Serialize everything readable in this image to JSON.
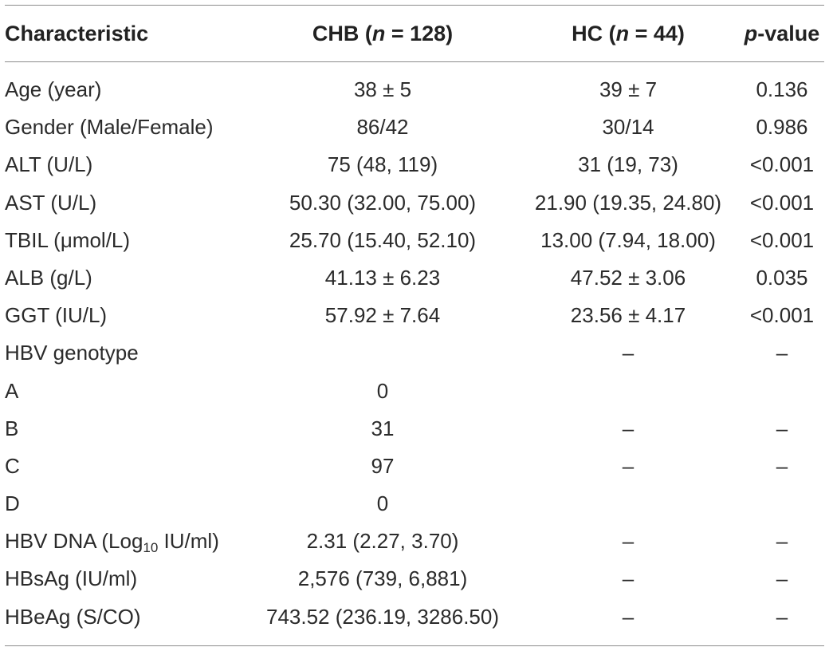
{
  "table": {
    "headers": {
      "characteristic": "Characteristic",
      "chb_prefix": "CHB (",
      "chb_n": "n",
      "chb_suffix": " = 128)",
      "hc_prefix": "HC (",
      "hc_n": "n",
      "hc_suffix": " = 44)",
      "p_italic": "p",
      "p_suffix": "-value"
    },
    "rows": [
      {
        "characteristic": "Age (year)",
        "chb": "38 ± 5",
        "hc": "39 ± 7",
        "p": "0.136"
      },
      {
        "characteristic": "Gender (Male/Female)",
        "chb": "86/42",
        "hc": "30/14",
        "p": "0.986"
      },
      {
        "characteristic": "ALT (U/L)",
        "chb": "75 (48, 119)",
        "hc": "31 (19, 73)",
        "p": "<0.001"
      },
      {
        "characteristic": "AST (U/L)",
        "chb": "50.30 (32.00, 75.00)",
        "hc": "21.90 (19.35, 24.80)",
        "p": "<0.001"
      },
      {
        "characteristic": "TBIL (μmol/L)",
        "chb": "25.70 (15.40, 52.10)",
        "hc": "13.00 (7.94, 18.00)",
        "p": "<0.001"
      },
      {
        "characteristic": "ALB (g/L)",
        "chb": "41.13 ± 6.23",
        "hc": "47.52 ± 3.06",
        "p": "0.035"
      },
      {
        "characteristic": "GGT (IU/L)",
        "chb": "57.92 ± 7.64",
        "hc": "23.56 ± 4.17",
        "p": "<0.001"
      },
      {
        "characteristic": "HBV genotype",
        "chb": "",
        "hc": "–",
        "p": "–"
      },
      {
        "characteristic": "A",
        "chb": "0",
        "hc": "",
        "p": ""
      },
      {
        "characteristic": "B",
        "chb": "31",
        "hc": "–",
        "p": "–"
      },
      {
        "characteristic": "C",
        "chb": "97",
        "hc": "–",
        "p": "–"
      },
      {
        "characteristic": "D",
        "chb": "0",
        "hc": "",
        "p": ""
      },
      {
        "characteristic_prefix": "HBV DNA (Log",
        "characteristic_sub": "10",
        "characteristic_suffix": " IU/ml)",
        "chb": "2.31 (2.27, 3.70)",
        "hc": "–",
        "p": "–"
      },
      {
        "characteristic": "HBsAg (IU/ml)",
        "chb": "2,576 (739, 6,881)",
        "hc": "–",
        "p": "–"
      },
      {
        "characteristic": "HBeAg (S/CO)",
        "chb": "743.52 (236.19, 3286.50)",
        "hc": "–",
        "p": "–"
      }
    ]
  }
}
